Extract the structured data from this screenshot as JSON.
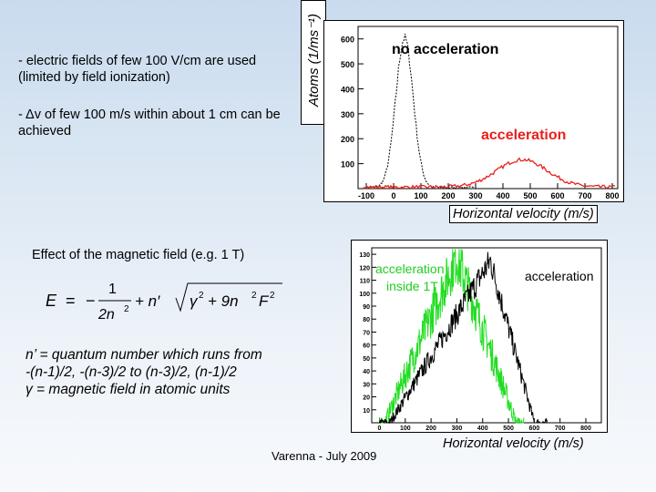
{
  "bullets": [
    "- electric fields of few 100 V/cm are used (limited by field ionization)",
    "- Δv of few 100 m/s within about 1 cm can be achieved"
  ],
  "plot1": {
    "ylabel": "Atoms (1/ms⁻¹)",
    "xlabel": "Horizontal velocity (m/s)",
    "label_no_acc": "no acceleration",
    "label_acc": "acceleration",
    "xticks": [
      "-100",
      "0",
      "100",
      "200",
      "300",
      "400",
      "500",
      "600",
      "700",
      "800"
    ],
    "yticks": [
      "600",
      "500",
      "400",
      "300",
      "200",
      "100"
    ]
  },
  "heading": "Effect of the magnetic field (e.g. 1 T)",
  "formula": {
    "E": "E",
    "eq": "=",
    "minus": "−",
    "one": "1",
    "two_n": "2n",
    "two_sup": "2",
    "plus_n": "+ n′",
    "gamma": "γ",
    "gsup": "2",
    "plus": "+ 9n",
    "nsup": "2",
    "F": "F",
    "fsup": "2"
  },
  "nprime": [
    "n’ = quantum number which runs from",
    "-(n-1)/2, -(n-3)/2 to (n-3)/2, (n-1)/2",
    "γ = magnetic field in atomic units"
  ],
  "plot2": {
    "label_inside_1": "acceleration",
    "label_inside_2": "inside 1T",
    "label_acc": "acceleration",
    "xlabel": "Horizontal velocity (m/s)",
    "yticks": [
      "130",
      "120",
      "110",
      "100",
      "90",
      "80",
      "70",
      "60",
      "50",
      "40",
      "30",
      "20",
      "10"
    ],
    "xticks": [
      "0",
      "100",
      "200",
      "300",
      "400",
      "500",
      "600",
      "700",
      "800"
    ]
  },
  "footer": "Varenna - July 2009",
  "colors": {
    "red": "#e8201c",
    "green": "#22dd22",
    "black": "#000000"
  }
}
